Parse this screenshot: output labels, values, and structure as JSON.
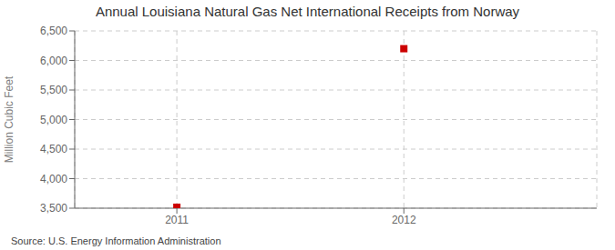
{
  "chart_data": {
    "type": "scatter",
    "title": "Annual Louisiana Natural Gas Net International Receipts from Norway",
    "ylabel": "Million Cubic Feet",
    "annotation": "Source: U.S. Energy Information Administration",
    "x": [
      2011,
      2012
    ],
    "values": [
      3516,
      6199
    ],
    "color": "#cc0000",
    "marker": "square",
    "xlim": [
      2010.55,
      2012.85
    ],
    "xticks": [
      2011,
      2012
    ],
    "ylim": [
      3500,
      6500
    ],
    "yticks": [
      {
        "value": 3500,
        "label": "3,500"
      },
      {
        "value": 4000,
        "label": "4,000"
      },
      {
        "value": 4500,
        "label": "4,500"
      },
      {
        "value": 5000,
        "label": "5,000"
      },
      {
        "value": 5500,
        "label": "5,500"
      },
      {
        "value": 6000,
        "label": "6,000"
      },
      {
        "value": 6500,
        "label": "6,500"
      }
    ],
    "grid": true
  }
}
